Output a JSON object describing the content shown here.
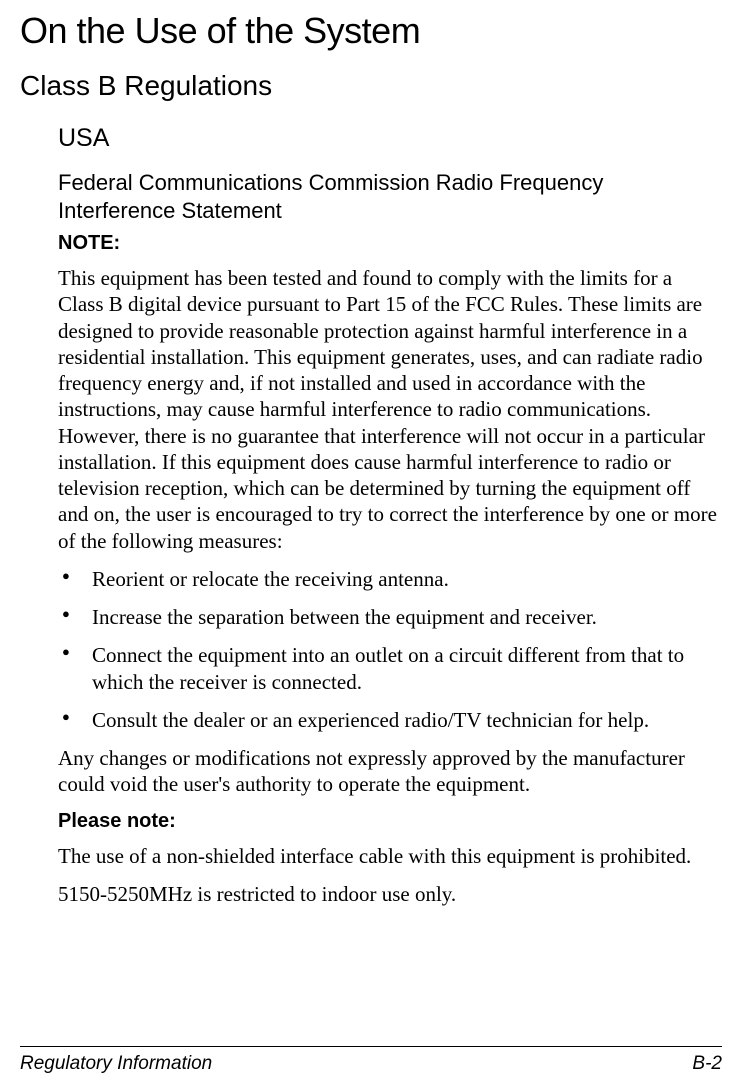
{
  "title": "On the Use of the System",
  "section": "Class B Regulations",
  "subsection": "USA",
  "statement_heading": "Federal Communications Commission Radio Frequency Interference Statement",
  "note_label": "NOTE:",
  "note_body": "This equipment has been tested and found to comply with the limits for a Class B digital device pursuant to Part 15 of the FCC Rules. These limits are designed to provide reasonable protection against harmful interference in a residential installation. This equipment generates, uses, and can radiate radio frequency energy and, if not installed and used in accordance with the instructions, may cause harmful interference to radio communications. However, there is no guarantee that interference will not occur in a particular installation. If this equipment does cause harmful interference to radio or television reception, which can be determined by turning the equipment off and on, the user is encouraged to try to correct the interference by one or more of the following measures:",
  "bullets": [
    "Reorient or relocate the receiving antenna.",
    "Increase the separation between the equipment and receiver.",
    "Connect the equipment into an outlet on a circuit different from that to which the receiver is connected.",
    "Consult the dealer or an experienced radio/TV technician for help."
  ],
  "changes_para": "Any changes or modifications not expressly approved by the manufacturer could void the user's authority to operate the equipment.",
  "please_note_label": "Please note:",
  "please_note_body": "The use of a non-shielded interface cable with this equipment is prohibited.",
  "freq_restriction": "5150-5250MHz is restricted to indoor use only.",
  "footer": {
    "left": "Regulatory Information",
    "right": "B-2"
  }
}
